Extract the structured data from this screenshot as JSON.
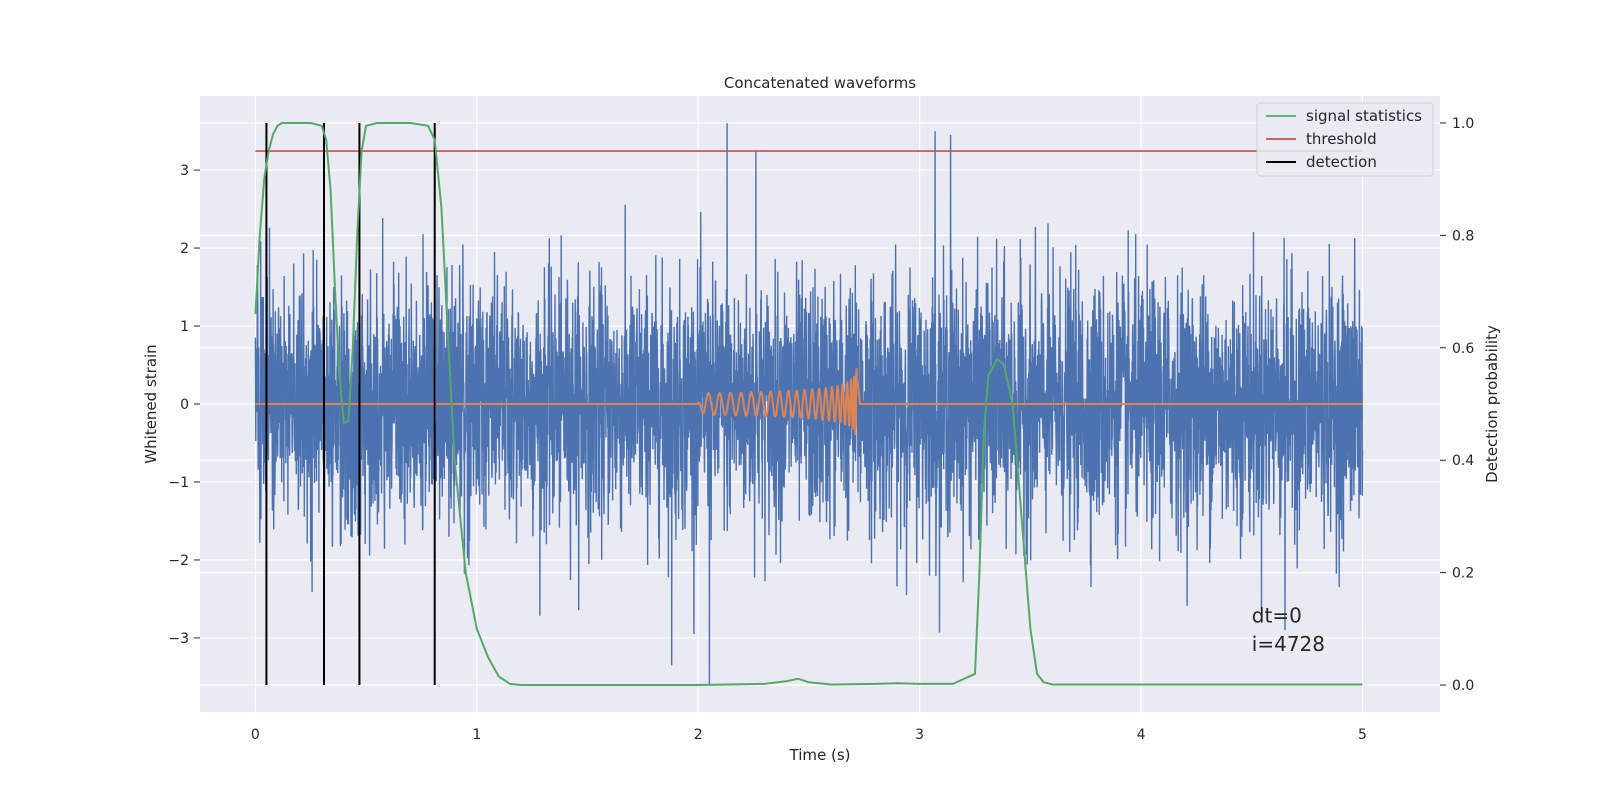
{
  "chart_data": {
    "type": "line",
    "title": "Concatenated waveforms",
    "xlabel": "Time (s)",
    "ylabel": "Whitened strain",
    "y2label": "Detection probability",
    "xlim": [
      -0.25,
      5.35
    ],
    "ylim": [
      -3.95,
      3.95
    ],
    "y2lim": [
      -0.048,
      1.048
    ],
    "xticks": [
      0,
      1,
      2,
      3,
      4,
      5
    ],
    "yticks": [
      -3,
      -2,
      -1,
      0,
      1,
      2,
      3
    ],
    "y2ticks": [
      0.0,
      0.2,
      0.4,
      0.6,
      0.8,
      1.0
    ],
    "grid": true,
    "legend_position": "top-right",
    "legend": [
      "signal statistics",
      "threshold",
      "detection"
    ],
    "colors": {
      "strain": "#4c72b0",
      "template": "#dd8452",
      "signal_statistics": "#55a868",
      "threshold": "#c44e52",
      "detection": "#000000",
      "background": "#eaeaf2",
      "grid": "#ffffff"
    },
    "series": [
      {
        "axis": "left",
        "color": "#4c72b0",
        "description_of_shape": "dense white-noise strain",
        "x_range": [
          0,
          5
        ],
        "typical_band": [
          -1.5,
          1.5
        ],
        "peaks": [
          {
            "x": 2.13,
            "y": 3.6
          },
          {
            "x": 2.26,
            "y": 3.25
          },
          {
            "x": 3.07,
            "y": 3.5
          },
          {
            "x": 3.14,
            "y": 3.45
          },
          {
            "x": 2.05,
            "y": -3.6
          },
          {
            "x": 1.88,
            "y": -3.35
          },
          {
            "x": 4.65,
            "y": -2.9
          }
        ]
      },
      {
        "axis": "left",
        "color": "#dd8452",
        "description_of_shape": "chirp waveform",
        "x_range": [
          0,
          5
        ],
        "chirp_start": 2.0,
        "chirp_end": 2.72,
        "max_amplitude": 0.5
      },
      {
        "name": "signal statistics",
        "axis": "right",
        "color": "#55a868",
        "x": [
          0.0,
          0.02,
          0.04,
          0.06,
          0.08,
          0.1,
          0.12,
          0.15,
          0.2,
          0.25,
          0.3,
          0.32,
          0.34,
          0.36,
          0.38,
          0.4,
          0.42,
          0.44,
          0.46,
          0.48,
          0.5,
          0.55,
          0.6,
          0.7,
          0.78,
          0.81,
          0.84,
          0.87,
          0.9,
          0.95,
          1.0,
          1.05,
          1.1,
          1.15,
          1.2,
          1.5,
          2.0,
          2.3,
          2.4,
          2.45,
          2.5,
          2.6,
          2.8,
          2.9,
          3.0,
          3.15,
          3.25,
          3.27,
          3.29,
          3.31,
          3.35,
          3.38,
          3.42,
          3.46,
          3.5,
          3.53,
          3.56,
          3.6,
          4.0,
          4.5,
          5.0
        ],
        "y": [
          0.66,
          0.8,
          0.9,
          0.95,
          0.98,
          0.995,
          1.0,
          1.0,
          1.0,
          1.0,
          0.995,
          0.97,
          0.88,
          0.7,
          0.55,
          0.465,
          0.47,
          0.6,
          0.8,
          0.95,
          0.995,
          1.0,
          1.0,
          1.0,
          0.995,
          0.97,
          0.85,
          0.62,
          0.4,
          0.2,
          0.1,
          0.05,
          0.015,
          0.002,
          0.0,
          0.0,
          0.0,
          0.002,
          0.007,
          0.011,
          0.005,
          0.001,
          0.002,
          0.003,
          0.002,
          0.002,
          0.02,
          0.2,
          0.45,
          0.55,
          0.58,
          0.57,
          0.5,
          0.3,
          0.1,
          0.02,
          0.005,
          0.001,
          0.001,
          0.001,
          0.001
        ]
      },
      {
        "name": "threshold",
        "axis": "right",
        "color": "#c44e52",
        "x": [
          0,
          5
        ],
        "y": [
          0.95,
          0.95
        ]
      }
    ],
    "detections": [
      0.05,
      0.31,
      0.47,
      0.81
    ],
    "detection_range": [
      0.0,
      1.0
    ],
    "annotations": [
      {
        "text": "dt=0",
        "x": 4.5,
        "y": -2.8
      },
      {
        "text": "i=4728",
        "x": 4.5,
        "y": -3.17
      }
    ]
  }
}
